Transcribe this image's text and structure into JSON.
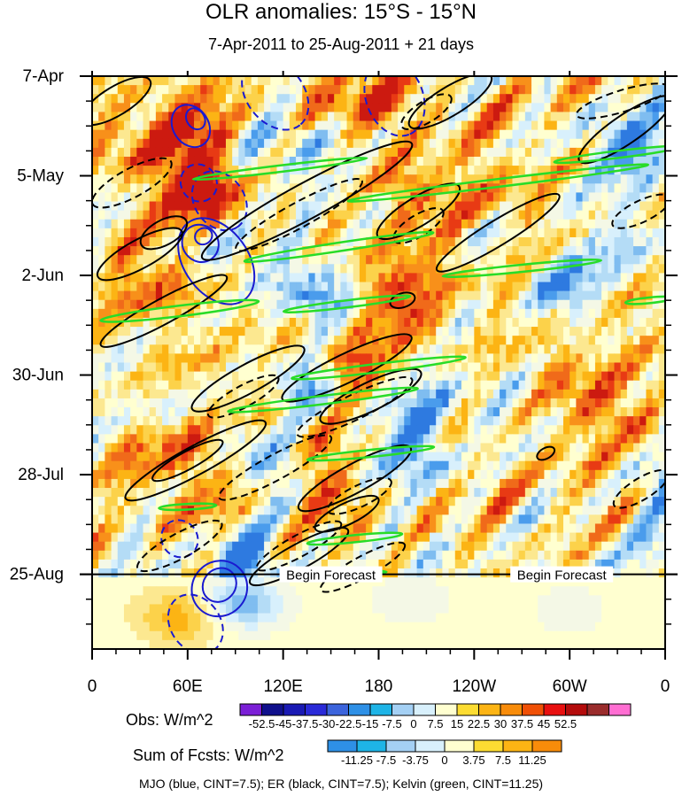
{
  "chart_data": {
    "type": "heatmap",
    "title": "OLR anomalies: 15°S - 15°N",
    "subtitle": "7-Apr-2011 to 25-Aug-2011 + 21 days",
    "xaxis": {
      "range_deg_east": [
        0,
        360
      ],
      "ticks": [
        {
          "lon": 0,
          "label": "0"
        },
        {
          "lon": 60,
          "label": "60E"
        },
        {
          "lon": 120,
          "label": "120E"
        },
        {
          "lon": 180,
          "label": "180"
        },
        {
          "lon": 240,
          "label": "120W"
        },
        {
          "lon": 300,
          "label": "60W"
        },
        {
          "lon": 360,
          "label": "0"
        }
      ]
    },
    "yaxis": {
      "range_days": [
        0,
        161
      ],
      "ticks": [
        {
          "day": 0,
          "label": "7-Apr"
        },
        {
          "day": 28,
          "label": "5-May"
        },
        {
          "day": 56,
          "label": "2-Jun"
        },
        {
          "day": 84,
          "label": "30-Jun"
        },
        {
          "day": 112,
          "label": "28-Jul"
        },
        {
          "day": 140,
          "label": "25-Aug"
        }
      ]
    },
    "forecast_start_day": 140,
    "forecast_label": "Begin Forecast",
    "forecast_label_lons": [
      150,
      295
    ],
    "obs_legend": {
      "title": "Obs: W/m^2",
      "labels": [
        "-52.5",
        "-45",
        "-37.5",
        "-30",
        "-22.5",
        "-15",
        "-7.5",
        "0",
        "7.5",
        "15",
        "22.5",
        "30",
        "37.5",
        "45",
        "52.5"
      ],
      "colors": [
        "#7b1fd6",
        "#10108c",
        "#1a1ab4",
        "#2a2ad8",
        "#3c64dc",
        "#2e90e6",
        "#1eb4e6",
        "#a4d0f4",
        "#d8f0fc",
        "#ffffd0",
        "#fcdc32",
        "#fcb414",
        "#f88c0a",
        "#f05006",
        "#e81010",
        "#b40c0c",
        "#9a2c2c",
        "#ff6ed2"
      ]
    },
    "fcst_legend": {
      "title": "Sum of Fcsts: W/m^2",
      "labels": [
        "-11.25",
        "-7.5",
        "-3.75",
        "0",
        "3.75",
        "7.5",
        "11.25"
      ],
      "colors": [
        "#2e90e6",
        "#1eb4e6",
        "#a4d0f4",
        "#d8f0fc",
        "#ffffd0",
        "#fcdc32",
        "#fcb414",
        "#f88c0a"
      ]
    },
    "contour_legend": "MJO (blue, CINT=7.5); ER (black, CINT=7.5); Kelvin (green, CINT=11.25)",
    "contour_colors": {
      "mjo": "#1a1ad0",
      "er": "#000000",
      "kelvin": "#28dc28"
    },
    "heatmap_palette": [
      "#2e7ae0",
      "#4a9cec",
      "#7fbdf0",
      "#b4dcf6",
      "#d8f0fc",
      "#f4f8e6",
      "#ffffd0",
      "#fce890",
      "#fcd24a",
      "#fcb414",
      "#f8901a",
      "#f06a1a",
      "#e83a14",
      "#cc1a10"
    ],
    "heatmap_features": [
      {
        "lon": 22,
        "day": 20,
        "amp": 0.45
      },
      {
        "lon": 50,
        "day": 12,
        "amp": 0.7
      },
      {
        "lon": 70,
        "day": 30,
        "amp": 1.0
      },
      {
        "lon": 80,
        "day": 40,
        "amp": 0.7
      },
      {
        "lon": 60,
        "day": 62,
        "amp": 0.5
      },
      {
        "lon": 30,
        "day": 58,
        "amp": 0.4
      },
      {
        "lon": 150,
        "day": 8,
        "amp": 0.45
      },
      {
        "lon": 185,
        "day": 7,
        "amp": 1.0
      },
      {
        "lon": 195,
        "day": 30,
        "amp": 0.5
      },
      {
        "lon": 240,
        "day": 60,
        "amp": 0.4
      },
      {
        "lon": 260,
        "day": 35,
        "amp": 0.35
      },
      {
        "lon": 185,
        "day": 58,
        "amp": 0.45
      },
      {
        "lon": 210,
        "day": 72,
        "amp": 0.5
      },
      {
        "lon": 165,
        "day": 80,
        "amp": 0.6
      },
      {
        "lon": 140,
        "day": 100,
        "amp": 0.5
      },
      {
        "lon": 60,
        "day": 105,
        "amp": 0.35
      },
      {
        "lon": 30,
        "day": 108,
        "amp": 0.4
      },
      {
        "lon": 155,
        "day": 120,
        "amp": 0.6
      },
      {
        "lon": 290,
        "day": 80,
        "amp": 0.35
      },
      {
        "lon": 325,
        "day": 95,
        "amp": 0.5
      },
      {
        "lon": 335,
        "day": 120,
        "amp": 0.45
      },
      {
        "lon": 95,
        "day": 125,
        "amp": 0.4
      },
      {
        "lon": 50,
        "day": 78,
        "amp": 0.3
      },
      {
        "lon": 130,
        "day": 18,
        "amp": -0.4
      },
      {
        "lon": 90,
        "day": 45,
        "amp": -0.4
      },
      {
        "lon": 140,
        "day": 62,
        "amp": -0.9
      },
      {
        "lon": 130,
        "day": 88,
        "amp": -0.8
      },
      {
        "lon": 100,
        "day": 105,
        "amp": -0.6
      },
      {
        "lon": 210,
        "day": 108,
        "amp": -0.55
      },
      {
        "lon": 200,
        "day": 92,
        "amp": -0.4
      },
      {
        "lon": 300,
        "day": 60,
        "amp": -0.5
      },
      {
        "lon": 330,
        "day": 18,
        "amp": -0.7
      },
      {
        "lon": 350,
        "day": 120,
        "amp": -0.45
      },
      {
        "lon": 215,
        "day": 138,
        "amp": -0.45
      },
      {
        "lon": 95,
        "day": 135,
        "amp": -0.8
      },
      {
        "lon": 345,
        "day": 50,
        "amp": -0.4
      },
      {
        "lon": 260,
        "day": 95,
        "amp": -0.3
      },
      {
        "lon": 30,
        "day": 135,
        "amp": -0.3
      }
    ],
    "forecast_features": [
      {
        "lon": 95,
        "day": 148,
        "amp": -0.8
      },
      {
        "lon": 55,
        "day": 152,
        "amp": 0.6
      },
      {
        "lon": 200,
        "day": 147,
        "amp": -0.25
      },
      {
        "lon": 300,
        "day": 150,
        "amp": -0.2
      }
    ],
    "contours": [
      {
        "kind": "mjo",
        "dash": false,
        "lon": 70,
        "day": 45,
        "rx": 5,
        "ry": 2.5,
        "angle": 0.95
      },
      {
        "kind": "mjo",
        "dash": false,
        "lon": 68,
        "day": 47,
        "rx": 12,
        "ry": 5,
        "angle": 0.95
      },
      {
        "kind": "mjo",
        "dash": false,
        "lon": 78,
        "day": 52,
        "rx": 30,
        "ry": 9,
        "angle": 0.95
      },
      {
        "kind": "mjo",
        "dash": false,
        "lon": 62,
        "day": 14,
        "rx": 14,
        "ry": 5,
        "angle": 1.0
      },
      {
        "kind": "mjo",
        "dash": false,
        "lon": 65,
        "day": 12,
        "rx": 7,
        "ry": 2.5,
        "angle": 1.0
      },
      {
        "kind": "mjo",
        "dash": true,
        "lon": 67,
        "day": 30,
        "rx": 12,
        "ry": 5,
        "angle": 0.95
      },
      {
        "kind": "mjo",
        "dash": true,
        "lon": 80,
        "day": 35,
        "rx": 20,
        "ry": 7,
        "angle": 0.95
      },
      {
        "kind": "mjo",
        "dash": true,
        "lon": 115,
        "day": 5,
        "rx": 25,
        "ry": 8,
        "angle": 0.9
      },
      {
        "kind": "mjo",
        "dash": true,
        "lon": 190,
        "day": 6,
        "rx": 25,
        "ry": 8,
        "angle": 1.2
      },
      {
        "kind": "mjo",
        "dash": false,
        "lon": 80,
        "day": 143,
        "rx": 10,
        "ry": 5,
        "angle": 0.75
      },
      {
        "kind": "mjo",
        "dash": false,
        "lon": 80,
        "day": 144,
        "rx": 17,
        "ry": 8,
        "angle": 0.75
      },
      {
        "kind": "mjo",
        "dash": true,
        "lon": 55,
        "day": 130,
        "rx": 12,
        "ry": 5,
        "angle": 0.9
      },
      {
        "kind": "mjo",
        "dash": true,
        "lon": 65,
        "day": 154,
        "rx": 20,
        "ry": 7,
        "angle": 0.95
      },
      {
        "kind": "er",
        "dash": false,
        "lon": 15,
        "day": 7,
        "rx": 25,
        "ry": 4,
        "angle": -0.55
      },
      {
        "kind": "er",
        "dash": false,
        "lon": 225,
        "day": 7,
        "rx": 30,
        "ry": 4,
        "angle": -0.55
      },
      {
        "kind": "er",
        "dash": true,
        "lon": 210,
        "day": 10,
        "rx": 18,
        "ry": 3,
        "angle": -0.55
      },
      {
        "kind": "er",
        "dash": true,
        "lon": 333,
        "day": 7,
        "rx": 30,
        "ry": 3,
        "angle": -0.3
      },
      {
        "kind": "er",
        "dash": false,
        "lon": 335,
        "day": 15,
        "rx": 35,
        "ry": 4,
        "angle": -0.6
      },
      {
        "kind": "er",
        "dash": true,
        "lon": 25,
        "day": 30,
        "rx": 28,
        "ry": 4,
        "angle": -0.5
      },
      {
        "kind": "er",
        "dash": false,
        "lon": 135,
        "day": 35,
        "rx": 75,
        "ry": 5,
        "angle": -0.5
      },
      {
        "kind": "er",
        "dash": true,
        "lon": 130,
        "day": 39,
        "rx": 45,
        "ry": 3.5,
        "angle": -0.5
      },
      {
        "kind": "er",
        "dash": false,
        "lon": 205,
        "day": 38,
        "rx": 30,
        "ry": 4,
        "angle": -0.55
      },
      {
        "kind": "er",
        "dash": true,
        "lon": 205,
        "day": 42,
        "rx": 18,
        "ry": 3,
        "angle": -0.55
      },
      {
        "kind": "er",
        "dash": false,
        "lon": 255,
        "day": 44,
        "rx": 45,
        "ry": 3.5,
        "angle": -0.55
      },
      {
        "kind": "er",
        "dash": true,
        "lon": 345,
        "day": 38,
        "rx": 20,
        "ry": 3,
        "angle": -0.45
      },
      {
        "kind": "er",
        "dash": false,
        "lon": 45,
        "day": 44,
        "rx": 16,
        "ry": 3.5,
        "angle": -0.5
      },
      {
        "kind": "er",
        "dash": false,
        "lon": 30,
        "day": 50,
        "rx": 30,
        "ry": 4,
        "angle": -0.5
      },
      {
        "kind": "er",
        "dash": false,
        "lon": 45,
        "day": 66,
        "rx": 45,
        "ry": 3.5,
        "angle": -0.5
      },
      {
        "kind": "er",
        "dash": false,
        "lon": 195,
        "day": 63,
        "rx": 8,
        "ry": 2,
        "angle": -0.3
      },
      {
        "kind": "er",
        "dash": false,
        "lon": 98,
        "day": 85,
        "rx": 40,
        "ry": 4,
        "angle": -0.5
      },
      {
        "kind": "er",
        "dash": true,
        "lon": 95,
        "day": 90,
        "rx": 25,
        "ry": 3,
        "angle": -0.5
      },
      {
        "kind": "er",
        "dash": false,
        "lon": 160,
        "day": 82,
        "rx": 45,
        "ry": 4,
        "angle": -0.45
      },
      {
        "kind": "er",
        "dash": false,
        "lon": 175,
        "day": 90,
        "rx": 35,
        "ry": 4,
        "angle": -0.45
      },
      {
        "kind": "er",
        "dash": true,
        "lon": 165,
        "day": 93,
        "rx": 40,
        "ry": 3.5,
        "angle": -0.45
      },
      {
        "kind": "er",
        "dash": false,
        "lon": 65,
        "day": 108,
        "rx": 50,
        "ry": 4,
        "angle": -0.5
      },
      {
        "kind": "er",
        "dash": false,
        "lon": 60,
        "day": 108,
        "rx": 25,
        "ry": 2.5,
        "angle": -0.5
      },
      {
        "kind": "er",
        "dash": true,
        "lon": 115,
        "day": 110,
        "rx": 40,
        "ry": 3.5,
        "angle": -0.5
      },
      {
        "kind": "er",
        "dash": false,
        "lon": 165,
        "day": 113,
        "rx": 40,
        "ry": 4,
        "angle": -0.5
      },
      {
        "kind": "er",
        "dash": false,
        "lon": 160,
        "day": 123,
        "rx": 22,
        "ry": 3,
        "angle": -0.45
      },
      {
        "kind": "er",
        "dash": true,
        "lon": 168,
        "day": 118,
        "rx": 22,
        "ry": 3,
        "angle": -0.45
      },
      {
        "kind": "er",
        "dash": true,
        "lon": 345,
        "day": 116,
        "rx": 20,
        "ry": 3,
        "angle": -0.55
      },
      {
        "kind": "er",
        "dash": false,
        "lon": 285,
        "day": 106,
        "rx": 6,
        "ry": 1.5,
        "angle": -0.5
      },
      {
        "kind": "er",
        "dash": true,
        "lon": 55,
        "day": 132,
        "rx": 30,
        "ry": 3.5,
        "angle": -0.5
      },
      {
        "kind": "er",
        "dash": false,
        "lon": 130,
        "day": 135,
        "rx": 35,
        "ry": 3.5,
        "angle": -0.5
      },
      {
        "kind": "er",
        "dash": true,
        "lon": 130,
        "day": 132,
        "rx": 30,
        "ry": 3,
        "angle": -0.5
      },
      {
        "kind": "er",
        "dash": true,
        "lon": 170,
        "day": 138,
        "rx": 30,
        "ry": 3,
        "angle": -0.5
      },
      {
        "kind": "kelvin",
        "dash": false,
        "lon": 118,
        "day": 26,
        "rx": 55,
        "ry": 0.9,
        "angle": -0.12
      },
      {
        "kind": "kelvin",
        "dash": false,
        "lon": 255,
        "day": 30,
        "rx": 95,
        "ry": 1.1,
        "angle": -0.12
      },
      {
        "kind": "kelvin",
        "dash": false,
        "lon": 155,
        "day": 48,
        "rx": 60,
        "ry": 1.2,
        "angle": -0.15
      },
      {
        "kind": "kelvin",
        "dash": false,
        "lon": 270,
        "day": 54,
        "rx": 50,
        "ry": 1,
        "angle": -0.1
      },
      {
        "kind": "kelvin",
        "dash": false,
        "lon": 55,
        "day": 66,
        "rx": 50,
        "ry": 1.5,
        "angle": -0.12
      },
      {
        "kind": "kelvin",
        "dash": false,
        "lon": 160,
        "day": 64,
        "rx": 40,
        "ry": 1,
        "angle": -0.12
      },
      {
        "kind": "kelvin",
        "dash": false,
        "lon": 330,
        "day": 22,
        "rx": 40,
        "ry": 1,
        "angle": -0.12
      },
      {
        "kind": "kelvin",
        "dash": false,
        "lon": 350,
        "day": 63,
        "rx": 15,
        "ry": 0.8,
        "angle": -0.1
      },
      {
        "kind": "kelvin",
        "dash": false,
        "lon": 180,
        "day": 82,
        "rx": 55,
        "ry": 1.2,
        "angle": -0.12
      },
      {
        "kind": "kelvin",
        "dash": false,
        "lon": 145,
        "day": 91,
        "rx": 60,
        "ry": 1.2,
        "angle": -0.12
      },
      {
        "kind": "kelvin",
        "dash": false,
        "lon": 175,
        "day": 106,
        "rx": 40,
        "ry": 1,
        "angle": -0.1
      },
      {
        "kind": "kelvin",
        "dash": false,
        "lon": 60,
        "day": 121,
        "rx": 18,
        "ry": 0.8,
        "angle": -0.05
      },
      {
        "kind": "kelvin",
        "dash": false,
        "lon": 165,
        "day": 130,
        "rx": 30,
        "ry": 1,
        "angle": -0.1
      },
      {
        "kind": "kelvin",
        "dash": false,
        "lon": 155,
        "day": 140,
        "rx": 30,
        "ry": 0.8,
        "angle": -0.05
      }
    ]
  }
}
